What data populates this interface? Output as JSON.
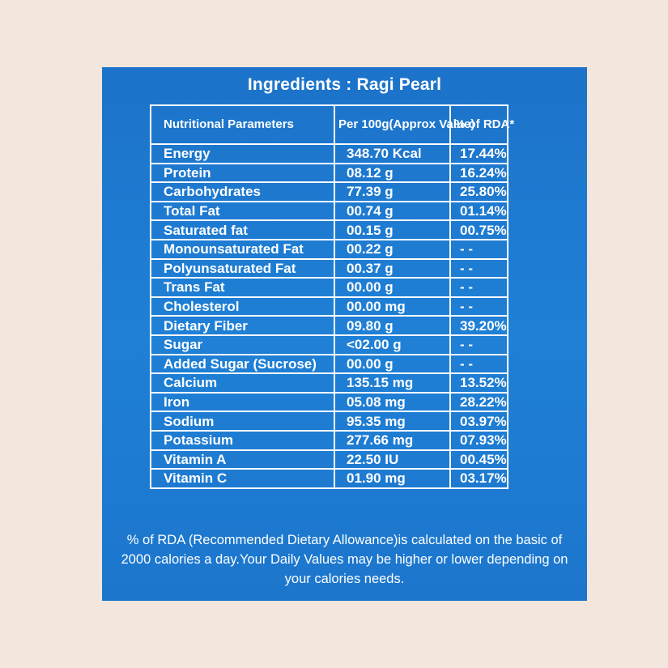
{
  "title": "Ingredients : Ragi Pearl",
  "table": {
    "headers": [
      "Nutritional Parameters",
      "Per 100g(Approx Value)",
      "% of RDA*"
    ],
    "rows": [
      [
        "Energy",
        "348.70 Kcal",
        "17.44%"
      ],
      [
        "Protein",
        "08.12 g",
        "16.24%"
      ],
      [
        "Carbohydrates",
        "77.39 g",
        "25.80%"
      ],
      [
        "Total Fat",
        "00.74 g",
        "01.14%"
      ],
      [
        "Saturated fat",
        "00.15 g",
        "00.75%"
      ],
      [
        "Monounsaturated Fat",
        "00.22 g",
        "- -"
      ],
      [
        "Polyunsaturated Fat",
        "00.37 g",
        "- -"
      ],
      [
        "Trans Fat",
        "00.00 g",
        "- -"
      ],
      [
        "Cholesterol",
        "00.00 mg",
        "- -"
      ],
      [
        "Dietary Fiber",
        "09.80 g",
        "39.20%"
      ],
      [
        "Sugar",
        "<02.00 g",
        "- -"
      ],
      [
        "Added Sugar (Sucrose)",
        "00.00 g",
        "- -"
      ],
      [
        "Calcium",
        "135.15 mg",
        "13.52%"
      ],
      [
        "Iron",
        "05.08 mg",
        "28.22%"
      ],
      [
        "Sodium",
        "95.35 mg",
        "03.97%"
      ],
      [
        "Potassium",
        "277.66 mg",
        "07.93%"
      ],
      [
        "Vitamin A",
        "22.50 IU",
        "00.45%"
      ],
      [
        "Vitamin C",
        "01.90 mg",
        "03.17%"
      ]
    ]
  },
  "footnote": "% of RDA (Recommended Dietary Allowance)is calculated on the basic of 2000 calories a day.Your Daily Values may be higher or lower depending on your calories needs.",
  "colors": {
    "background": "#f3e6dc",
    "panel": "#1f80d6",
    "text": "#ffffff"
  }
}
